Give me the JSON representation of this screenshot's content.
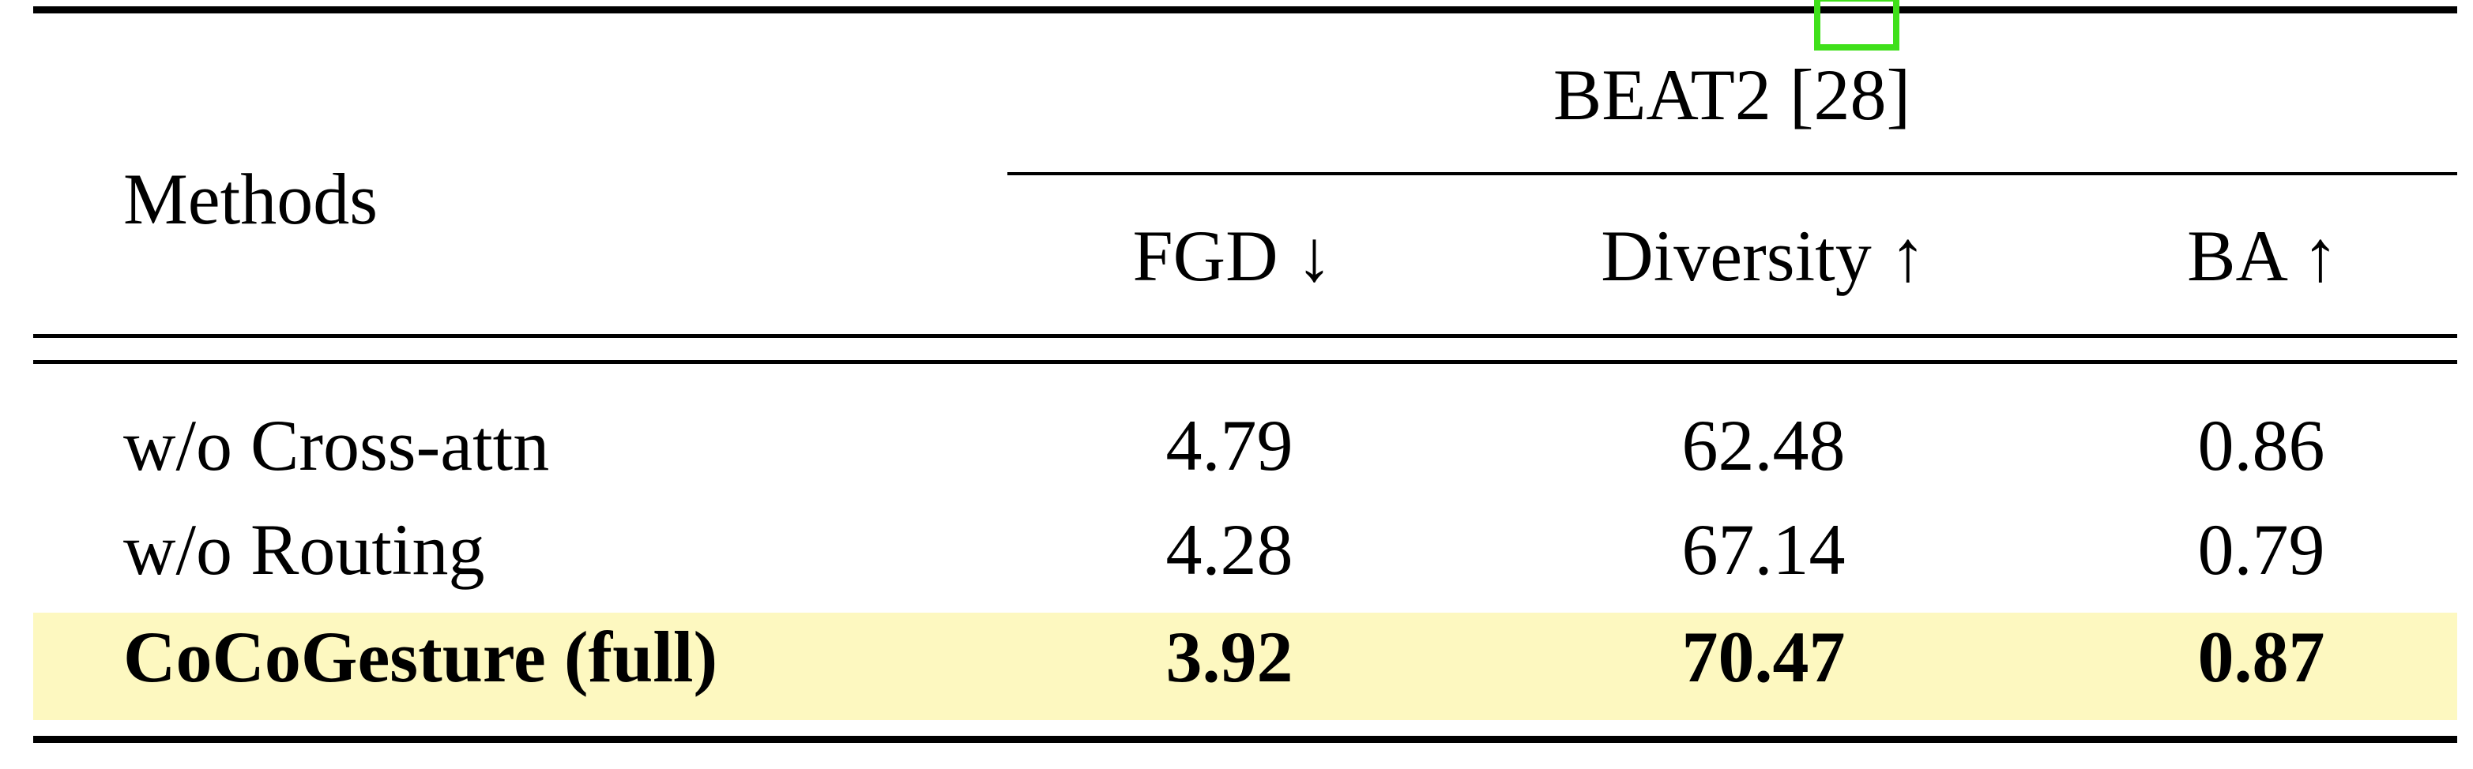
{
  "table": {
    "group_header": "BEAT2 [28]",
    "methods_header": "Methods",
    "columns": [
      "FGD ↓",
      "Diversity ↑",
      "BA ↑"
    ],
    "rows": [
      {
        "method": "w/o Cross-attn",
        "values": [
          "4.79",
          "62.48",
          "0.86"
        ],
        "highlighted": false
      },
      {
        "method": "w/o Routing",
        "values": [
          "4.28",
          "67.14",
          "0.79"
        ],
        "highlighted": false
      },
      {
        "method": "CoCoGesture (full)",
        "values": [
          "3.92",
          "70.47",
          "0.87"
        ],
        "highlighted": true
      }
    ]
  },
  "colors": {
    "highlight_row": "#fdf8c0",
    "selection_box": "#3fe01a"
  }
}
